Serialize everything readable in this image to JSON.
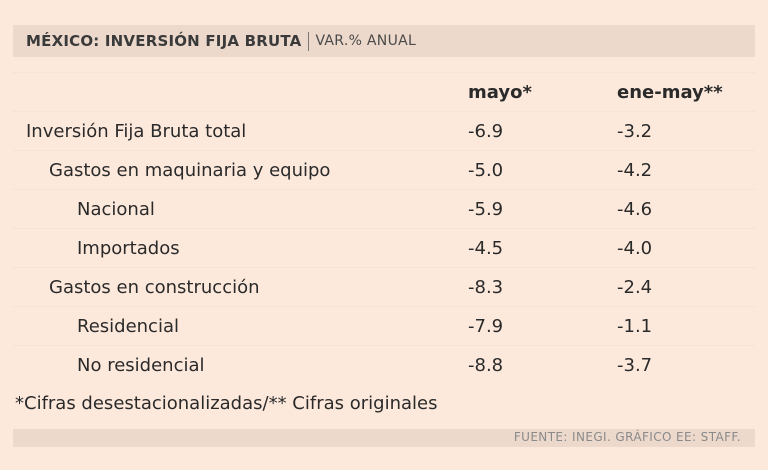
{
  "header": {
    "title": "MÉXICO: INVERSIÓN FIJA BRUTA",
    "subtitle": "VAR.% ANUAL"
  },
  "table": {
    "columns": [
      "mayo*",
      "ene-may**"
    ],
    "rows": [
      {
        "label": "Inversión Fija Bruta total",
        "mayo": "-6.9",
        "ene_may": "-3.2"
      },
      {
        "label": "Gastos en maquinaria y equipo",
        "mayo": "-5.0",
        "ene_may": "-4.2"
      },
      {
        "label": "Nacional",
        "mayo": "-5.9",
        "ene_may": "-4.6"
      },
      {
        "label": "Importados",
        "mayo": "-4.5",
        "ene_may": "-4.0"
      },
      {
        "label": "Gastos en construcción",
        "mayo": "-8.3",
        "ene_may": "-2.4"
      },
      {
        "label": "Residencial",
        "mayo": "-7.9",
        "ene_may": "-1.1"
      },
      {
        "label": "No residencial",
        "mayo": "-8.8",
        "ene_may": "-3.7"
      }
    ]
  },
  "note": "*Cifras desestacionalizadas/** Cifras originales",
  "footer": "FUENTE: INEGI. GRÁFICO EE: STAFF."
}
